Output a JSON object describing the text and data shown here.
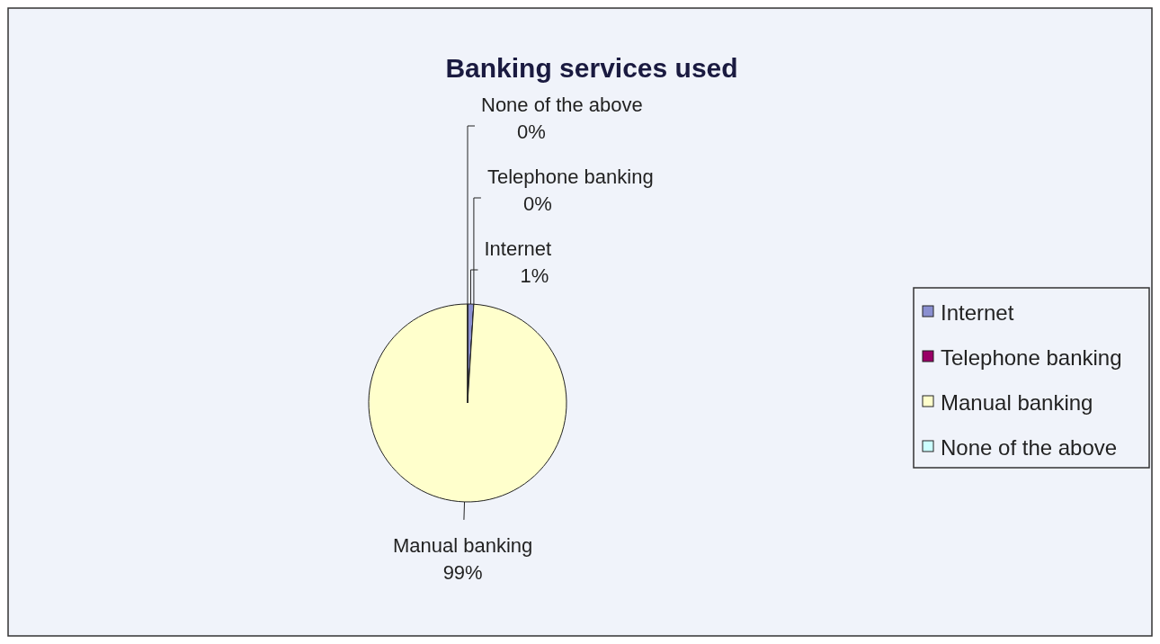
{
  "chart_data": {
    "type": "pie",
    "title": "Banking services used",
    "categories": [
      "Internet",
      "Telephone banking",
      "Manual banking",
      "None of the above"
    ],
    "values": [
      1,
      0,
      99,
      0
    ],
    "colors": [
      "#8a8fd0",
      "#990066",
      "#ffffcc",
      "#ccffff"
    ],
    "value_labels": [
      "1%",
      "0%",
      "99%",
      "0%"
    ],
    "legend": "right"
  }
}
